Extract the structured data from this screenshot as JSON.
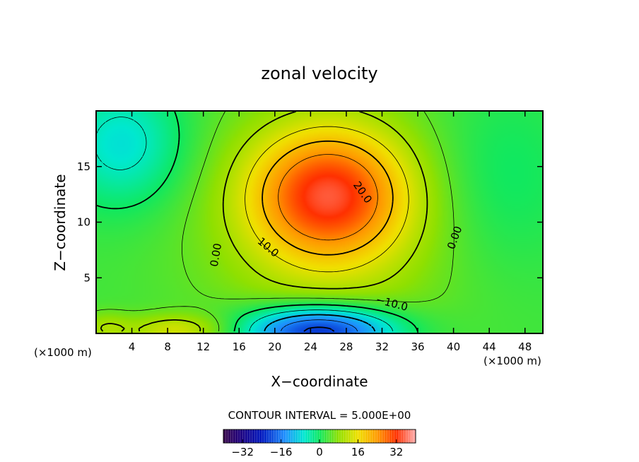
{
  "chart_data": {
    "type": "heatmap",
    "title": "zonal velocity",
    "xlabel": "X−coordinate",
    "ylabel": "Z−coordinate",
    "x_unit_left": "(×1000 m)",
    "x_unit_right": "(×1000 m)",
    "xlim": [
      0,
      50
    ],
    "ylim": [
      0,
      20
    ],
    "x_ticks": [
      4,
      8,
      12,
      16,
      20,
      24,
      28,
      32,
      36,
      40,
      44,
      48
    ],
    "x_tick_labels": [
      "4",
      "8",
      "12",
      "16",
      "20",
      "24",
      "28",
      "32",
      "36",
      "40",
      "44",
      "48"
    ],
    "y_ticks": [
      5,
      10,
      15
    ],
    "y_tick_labels": [
      "5",
      "10",
      "15"
    ],
    "contour_interval_text": "CONTOUR INTERVAL = 5.000E+00",
    "contour_interval": 5.0,
    "contour_labels": [
      {
        "text": "20.0",
        "x": 29.5,
        "y": 12.5,
        "angle": 55
      },
      {
        "text": "10.0",
        "x": 19.0,
        "y": 7.5,
        "angle": 40
      },
      {
        "text": "0.00",
        "x": 13.8,
        "y": 7.0,
        "angle": -80
      },
      {
        "text": "0.00",
        "x": 40.5,
        "y": 8.5,
        "angle": -70
      },
      {
        "text": "−10.0",
        "x": 33.0,
        "y": 2.4,
        "angle": 15
      }
    ],
    "colorbar": {
      "min": -40,
      "max": 40,
      "ticks": [
        -32,
        -16,
        0,
        16,
        32
      ],
      "tick_labels": [
        "−32",
        "−16",
        "0",
        "16",
        "32"
      ]
    },
    "field_features": [
      {
        "kind": "jet_max",
        "x": 26,
        "y": 12.5,
        "value": 27
      },
      {
        "kind": "jet_min",
        "x": 25,
        "y": 0.5,
        "value": -25
      },
      {
        "kind": "side_min",
        "x": 3,
        "y": 17,
        "value": -10
      },
      {
        "kind": "side_min",
        "x": 45,
        "y": 14,
        "value": -3
      }
    ]
  }
}
